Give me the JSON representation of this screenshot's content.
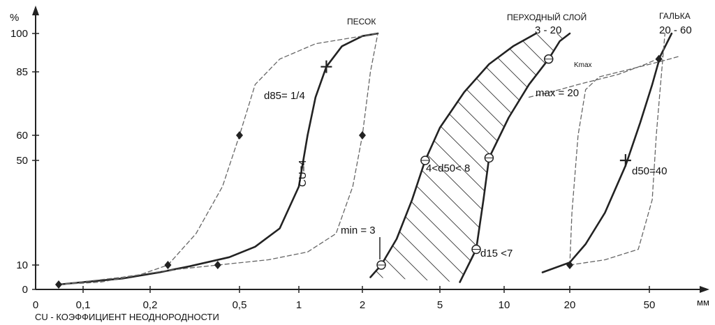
{
  "colors": {
    "ink": "#222222",
    "dashed": "#666666",
    "hatch": "#333333",
    "background": "#ffffff"
  },
  "chart_data": {
    "type": "line",
    "x_scale": "log",
    "y_unit": "%",
    "x_unit": "мм",
    "xlim": [
      0.05,
      70
    ],
    "ylim": [
      0,
      100
    ],
    "x_tick_labels": [
      "0",
      "0,1",
      "0,2",
      "0,5",
      "1",
      "2",
      "5",
      "10",
      "20",
      "50"
    ],
    "y_tick_labels": [
      "0",
      "10",
      "50",
      "60",
      "85",
      "100"
    ],
    "y_ticks": [
      0,
      10,
      50,
      60,
      85,
      100
    ],
    "footer": "CU - КОЭФФИЦИЕНТ   НЕОДНОРОДНОСТИ",
    "group_labels": [
      {
        "text": "ПЕСОК",
        "sub": ""
      },
      {
        "text": "ПЕРХОДНЫЙ СЛОЙ",
        "sub": "3 - 20"
      },
      {
        "text": "ГАЛЬКА",
        "sub": "20 - 60"
      }
    ],
    "annotations": [
      "d85= 1/4",
      "CU=4",
      "4<d50< 8",
      "min = 3",
      "max = 20",
      "d15 <7",
      "d50=40",
      "Kmax"
    ],
    "series": [
      {
        "style": "solid",
        "points": [
          [
            0.07,
            2
          ],
          [
            0.1,
            3
          ],
          [
            0.15,
            4.5
          ],
          [
            0.22,
            7
          ],
          [
            0.3,
            9.5
          ],
          [
            0.45,
            13
          ],
          [
            0.6,
            17
          ],
          [
            0.8,
            24
          ],
          [
            1.0,
            40
          ],
          [
            1.1,
            60
          ],
          [
            1.2,
            75
          ],
          [
            1.35,
            87
          ],
          [
            1.6,
            95
          ],
          [
            2.0,
            99
          ],
          [
            2.4,
            100
          ]
        ]
      },
      {
        "style": "dashed",
        "points": [
          [
            0.07,
            2
          ],
          [
            0.12,
            3
          ],
          [
            0.18,
            6
          ],
          [
            0.24,
            10
          ],
          [
            0.32,
            22
          ],
          [
            0.42,
            40
          ],
          [
            0.5,
            60
          ],
          [
            0.6,
            80
          ],
          [
            0.8,
            90
          ],
          [
            1.2,
            96
          ],
          [
            2.4,
            100
          ]
        ]
      },
      {
        "style": "dashed",
        "points": [
          [
            0.07,
            2
          ],
          [
            0.15,
            5
          ],
          [
            0.25,
            8
          ],
          [
            0.4,
            10
          ],
          [
            0.7,
            12
          ],
          [
            1.1,
            15
          ],
          [
            1.5,
            22
          ],
          [
            1.8,
            40
          ],
          [
            2.0,
            60
          ],
          [
            2.2,
            85
          ],
          [
            2.4,
            100
          ]
        ]
      },
      {
        "style": "solid",
        "points": [
          [
            2.2,
            5
          ],
          [
            2.5,
            10
          ],
          [
            3,
            20
          ],
          [
            3.6,
            35
          ],
          [
            4.2,
            50
          ],
          [
            5,
            63
          ],
          [
            6.5,
            77
          ],
          [
            8.5,
            88
          ],
          [
            11,
            95
          ],
          [
            14,
            100
          ]
        ]
      },
      {
        "style": "solid",
        "points": [
          [
            6.2,
            3
          ],
          [
            6.8,
            10
          ],
          [
            7.4,
            16
          ],
          [
            8,
            35
          ],
          [
            8.5,
            51
          ],
          [
            10.5,
            67
          ],
          [
            13,
            80
          ],
          [
            16,
            90
          ],
          [
            18,
            97
          ],
          [
            20,
            100
          ]
        ]
      },
      {
        "style": "solid",
        "points": [
          [
            15,
            7
          ],
          [
            20,
            11
          ],
          [
            24,
            18
          ],
          [
            30,
            30
          ],
          [
            38,
            48
          ],
          [
            45,
            65
          ],
          [
            52,
            80
          ],
          [
            58,
            91
          ],
          [
            68,
            100
          ]
        ]
      },
      {
        "style": "dashed",
        "points": [
          [
            20,
            10
          ],
          [
            20.5,
            30
          ],
          [
            22,
            60
          ],
          [
            24,
            78
          ],
          [
            28,
            83
          ],
          [
            40,
            86
          ],
          [
            58,
            89
          ],
          [
            75,
            91
          ]
        ]
      },
      {
        "style": "dashed",
        "points": [
          [
            13,
            75
          ],
          [
            18,
            78
          ],
          [
            22,
            80
          ],
          [
            35,
            84
          ],
          [
            48,
            88
          ],
          [
            60,
            91
          ]
        ]
      },
      {
        "style": "dashed",
        "points": [
          [
            20,
            10
          ],
          [
            30,
            12
          ],
          [
            44,
            16
          ],
          [
            52,
            35
          ],
          [
            55,
            60
          ],
          [
            58,
            78
          ],
          [
            62,
            100
          ]
        ]
      }
    ],
    "markers": [
      {
        "shape": "diamond",
        "x": 0.07,
        "y": 2
      },
      {
        "shape": "diamond",
        "x": 0.24,
        "y": 10
      },
      {
        "shape": "diamond",
        "x": 0.4,
        "y": 10
      },
      {
        "shape": "diamond",
        "x": 0.5,
        "y": 60
      },
      {
        "shape": "diamond",
        "x": 2.0,
        "y": 60
      },
      {
        "shape": "plus",
        "x": 1.35,
        "y": 87
      },
      {
        "shape": "circle",
        "x": 2.5,
        "y": 10
      },
      {
        "shape": "circle",
        "x": 4.2,
        "y": 50
      },
      {
        "shape": "circle",
        "x": 8.5,
        "y": 51
      },
      {
        "shape": "circle",
        "x": 7.4,
        "y": 16
      },
      {
        "shape": "circle",
        "x": 16,
        "y": 90
      },
      {
        "shape": "plus",
        "x": 38,
        "y": 50
      },
      {
        "shape": "diamond",
        "x": 20,
        "y": 10
      },
      {
        "shape": "diamond",
        "x": 57,
        "y": 90
      }
    ]
  }
}
